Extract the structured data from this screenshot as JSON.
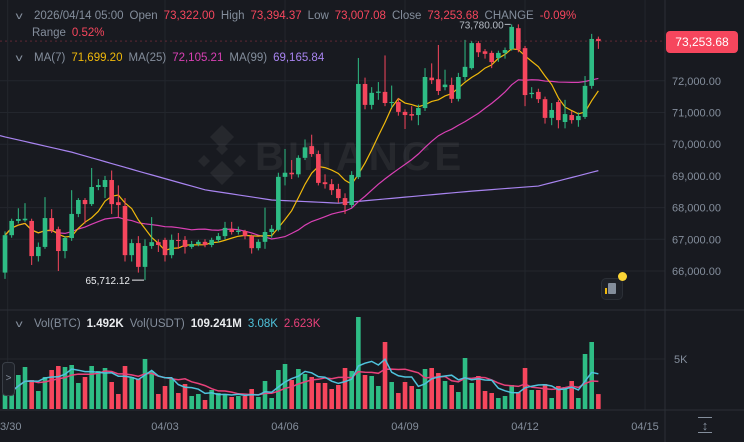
{
  "header": {
    "datetime": "2026/04/14 05:00",
    "open_label": "Open",
    "open": "73,322.00",
    "high_label": "High",
    "high": "73,394.37",
    "low_label": "Low",
    "low": "73,007.08",
    "close_label": "Close",
    "close": "73,253.68",
    "change_label": "CHANGE",
    "change": "-0.09%",
    "range_label": "Range",
    "range": "0.52%"
  },
  "ma_legend": {
    "ma7_label": "MA(7)",
    "ma7": "71,699.20",
    "ma25_label": "MA(25)",
    "ma25": "72,105.21",
    "ma99_label": "MA(99)",
    "ma99": "69,165.84"
  },
  "vol_legend": {
    "vol_btc_label": "Vol(BTC)",
    "vol_btc": "1.492K",
    "vol_usdt_label": "Vol(USDT)",
    "vol_usdt": "109.241M",
    "ma_a": "3.08K",
    "ma_b": "2.623K"
  },
  "current_price_tag": "73,253.68",
  "watermark": "BINANCE",
  "colors": {
    "up": "#2ebd85",
    "down": "#f6465d",
    "ma7": "#f0b90b",
    "ma25": "#d940b4",
    "ma99": "#a884f0",
    "vol_ma_a": "#4fc3dc",
    "vol_ma_b": "#e8417a",
    "background": "#181a20"
  },
  "icons": [
    "chevron-down-icon",
    "chevron-right-icon",
    "indicator-doc-icon",
    "notification-dot-icon",
    "auto-scale-icon",
    "binance-logo-icon"
  ],
  "chart_data": {
    "type": "candlestick",
    "interval": "4h",
    "x_tick_labels": [
      "03/30",
      "04/03",
      "04/06",
      "04/09",
      "04/12",
      "04/15"
    ],
    "y_ticks": [
      66000,
      67000,
      68000,
      69000,
      70000,
      71000,
      72000
    ],
    "y_tick_labels": [
      "66,000.00",
      "67,000.00",
      "68,000.00",
      "69,000.00",
      "70,000.00",
      "71,000.00",
      "72,000.00"
    ],
    "ylim": [
      65300,
      74200
    ],
    "grid": true,
    "annotations": {
      "max_label": "73,780.00",
      "max_value": 73780,
      "min_label": "65,712.12",
      "min_value": 65712.12
    },
    "ohlc": [
      [
        65950,
        67250,
        65750,
        67130
      ],
      [
        67130,
        67650,
        67050,
        67580
      ],
      [
        67580,
        67980,
        67500,
        67640
      ],
      [
        67600,
        68140,
        67550,
        67650
      ],
      [
        67580,
        67650,
        66190,
        66470
      ],
      [
        66470,
        66900,
        66300,
        66760
      ],
      [
        66760,
        68330,
        66700,
        67670
      ],
      [
        67670,
        67950,
        67200,
        67290
      ],
      [
        67320,
        67400,
        66000,
        66630
      ],
      [
        66630,
        67100,
        66400,
        67040
      ],
      [
        67040,
        68550,
        66950,
        67800
      ],
      [
        67800,
        68300,
        67700,
        68240
      ],
      [
        68240,
        68300,
        67500,
        68110
      ],
      [
        68110,
        69250,
        68050,
        68650
      ],
      [
        68650,
        68900,
        68550,
        68710
      ],
      [
        68650,
        69000,
        68300,
        68870
      ],
      [
        68870,
        69170,
        67800,
        68110
      ],
      [
        68170,
        68700,
        67700,
        68080
      ],
      [
        68050,
        68300,
        66300,
        66500
      ],
      [
        66500,
        67000,
        66300,
        66880
      ],
      [
        66880,
        67100,
        65950,
        66130
      ],
      [
        66130,
        67000,
        65712.12,
        66790
      ],
      [
        66790,
        67700,
        66700,
        66910
      ],
      [
        66910,
        67000,
        66600,
        66820
      ],
      [
        66980,
        67050,
        66300,
        66500
      ],
      [
        66500,
        67150,
        66400,
        66980
      ],
      [
        66980,
        67200,
        66700,
        66950
      ],
      [
        66980,
        67100,
        66550,
        66760
      ],
      [
        66760,
        66950,
        66700,
        66850
      ],
      [
        66850,
        66980,
        66780,
        66920
      ],
      [
        66920,
        67000,
        66750,
        66820
      ],
      [
        66820,
        67050,
        66750,
        66980
      ],
      [
        66980,
        67200,
        66900,
        67100
      ],
      [
        67100,
        67550,
        67000,
        67360
      ],
      [
        67320,
        67550,
        67150,
        67230
      ],
      [
        67230,
        67400,
        67150,
        67270
      ],
      [
        67260,
        67300,
        67000,
        67100
      ],
      [
        67100,
        67150,
        66550,
        66720
      ],
      [
        66720,
        67000,
        66650,
        66920
      ],
      [
        66920,
        68000,
        66700,
        67230
      ],
      [
        67230,
        67450,
        67050,
        67330
      ],
      [
        67300,
        69100,
        67250,
        68970
      ],
      [
        68970,
        69850,
        68700,
        69100
      ],
      [
        69100,
        69500,
        68900,
        69050
      ],
      [
        69050,
        69650,
        68950,
        69570
      ],
      [
        69570,
        70150,
        69500,
        69900
      ],
      [
        69940,
        70300,
        69600,
        69690
      ],
      [
        69690,
        69800,
        68700,
        68780
      ],
      [
        68800,
        69050,
        68600,
        68740
      ],
      [
        68740,
        68900,
        68400,
        68550
      ],
      [
        68590,
        68750,
        68150,
        68300
      ],
      [
        68300,
        68450,
        67800,
        68080
      ],
      [
        68080,
        69150,
        68000,
        69030
      ],
      [
        68960,
        72720,
        68900,
        71900
      ],
      [
        71900,
        72100,
        71100,
        71240
      ],
      [
        71240,
        71800,
        71100,
        71620
      ],
      [
        71620,
        71960,
        71400,
        71660
      ],
      [
        71650,
        72800,
        71200,
        71300
      ],
      [
        71300,
        71850,
        71150,
        71330
      ],
      [
        71330,
        71450,
        70900,
        71020
      ],
      [
        71020,
        71100,
        70480,
        70920
      ],
      [
        70950,
        71200,
        70750,
        70900
      ],
      [
        70920,
        71250,
        70600,
        71140
      ],
      [
        71140,
        72400,
        71050,
        72120
      ],
      [
        72100,
        72550,
        71900,
        72020
      ],
      [
        72050,
        73130,
        71550,
        71680
      ],
      [
        71800,
        72350,
        71700,
        71880
      ],
      [
        71870,
        72100,
        71300,
        71430
      ],
      [
        71430,
        72250,
        71350,
        72120
      ],
      [
        72120,
        73290,
        72000,
        72440
      ],
      [
        72400,
        73250,
        72350,
        73190
      ],
      [
        73190,
        73250,
        72750,
        72900
      ],
      [
        72930,
        73000,
        72700,
        72850
      ],
      [
        72880,
        72950,
        72400,
        72590
      ],
      [
        72720,
        72950,
        72600,
        72880
      ],
      [
        72880,
        73050,
        72700,
        72970
      ],
      [
        73000,
        73780,
        72950,
        73700
      ],
      [
        73660,
        73780,
        72900,
        72980
      ],
      [
        73030,
        73100,
        71200,
        71550
      ],
      [
        71580,
        71800,
        71450,
        71620
      ],
      [
        71650,
        71750,
        71300,
        71420
      ],
      [
        71420,
        71500,
        70650,
        70830
      ],
      [
        70830,
        71300,
        70600,
        71080
      ],
      [
        71330,
        71400,
        70500,
        70760
      ],
      [
        70700,
        71400,
        70500,
        70950
      ],
      [
        70920,
        71050,
        70650,
        70760
      ],
      [
        70760,
        71000,
        70550,
        70890
      ],
      [
        70860,
        72150,
        70800,
        71840
      ],
      [
        71840,
        73480,
        71750,
        73320
      ],
      [
        73322,
        73394.37,
        73007.08,
        73253.68
      ]
    ],
    "ma99_approx": [
      70230,
      69750,
      69150,
      68560,
      68240,
      68140,
      68330,
      68520,
      68680,
      69165.84
    ],
    "volume_unit": "K",
    "volume_ticks": [
      5
    ],
    "volume_tick_labels": [
      "5K"
    ],
    "volume": [
      1.9,
      1.6,
      3.4,
      4.2,
      2.9,
      1.8,
      3.2,
      3.9,
      4.3,
      4.2,
      4.4,
      2.6,
      3.2,
      4.3,
      3.8,
      4.1,
      2.7,
      1.5,
      4.3,
      3.2,
      3.0,
      5.0,
      3.8,
      1.5,
      2.3,
      3.0,
      1.6,
      2.5,
      1.3,
      1.5,
      0.9,
      1.9,
      1.6,
      1.4,
      1.2,
      1.3,
      1.3,
      2.0,
      1.2,
      2.8,
      1.1,
      3.9,
      4.5,
      2.9,
      4.0,
      3.5,
      3.2,
      2.6,
      2.6,
      2.0,
      2.4,
      4.1,
      3.8,
      9.2,
      3.4,
      3.3,
      2.3,
      6.7,
      2.7,
      1.6,
      2.7,
      2.3,
      2.0,
      4.0,
      4.1,
      3.6,
      2.8,
      2.4,
      1.7,
      5.1,
      2.6,
      3.3,
      1.8,
      1.6,
      1.1,
      1.3,
      2.4,
      1.7,
      4.1,
      1.9,
      1.9,
      2.5,
      1.1,
      2.3,
      2.2,
      2.8,
      1.1,
      5.5,
      6.7,
      1.492
    ]
  }
}
